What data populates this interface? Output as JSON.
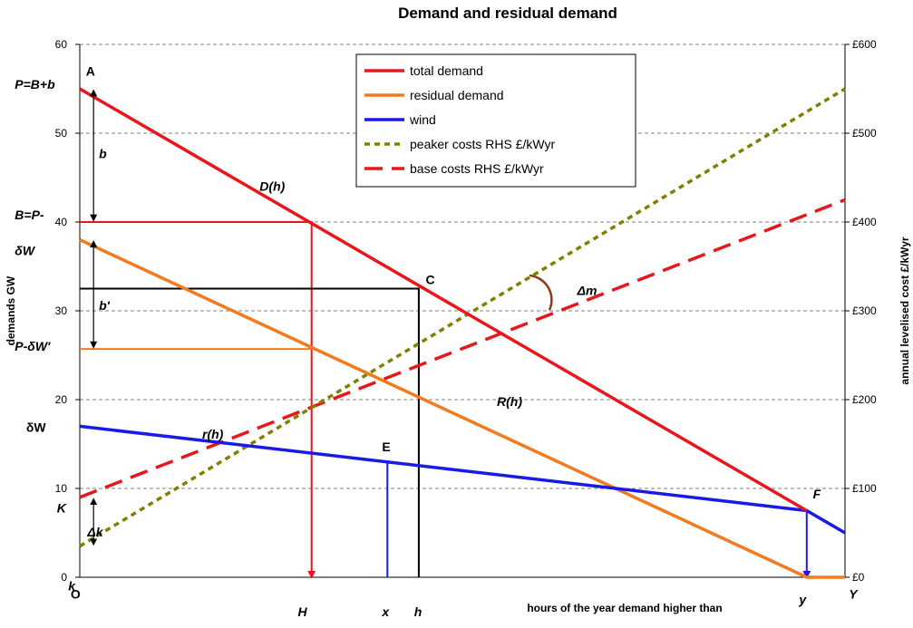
{
  "chart_data": {
    "type": "line",
    "title": "Demand and residual demand",
    "ylabel_left": "demands GW",
    "ylabel_right": "annual levelised cost £/kWyr",
    "xlabel": "hours of the year demand higher than",
    "ylim_left": [
      0,
      60
    ],
    "ylim_right": [
      0,
      600
    ],
    "xlim": [
      0,
      1
    ],
    "left_ticks": [
      "0",
      "10",
      "20",
      "30",
      "40",
      "50",
      "60"
    ],
    "right_ticks": [
      "£0",
      "£100",
      "£200",
      "£300",
      "£400",
      "£500",
      "£600"
    ],
    "grid": true,
    "legend_position": "top-center",
    "legend": [
      {
        "label": "total demand",
        "color": "#e8171c",
        "style": "solid"
      },
      {
        "label": "residual demand",
        "color": "#f47a1f",
        "style": "solid"
      },
      {
        "label": "wind",
        "color": "#1a1ae6",
        "style": "solid"
      },
      {
        "label": "peaker costs RHS £/kWyr",
        "color": "#808000",
        "style": "dotted"
      },
      {
        "label": "base costs RHS £/kWyr",
        "color": "#e8171c",
        "style": "dashed"
      }
    ],
    "series": [
      {
        "name": "total demand",
        "axis": "left",
        "x": [
          0,
          0.95
        ],
        "y": [
          55,
          7.5
        ]
      },
      {
        "name": "residual demand",
        "axis": "left",
        "x": [
          0,
          0.95,
          1.0
        ],
        "y": [
          38,
          0,
          0
        ]
      },
      {
        "name": "wind",
        "axis": "left",
        "x": [
          0,
          0.95,
          1.0
        ],
        "y": [
          17,
          7.5,
          5
        ]
      },
      {
        "name": "peaker costs RHS £/kWyr",
        "axis": "right",
        "x": [
          0,
          1.0
        ],
        "y": [
          35,
          550
        ]
      },
      {
        "name": "base costs RHS £/kWyr",
        "axis": "right",
        "x": [
          0,
          1.0
        ],
        "y": [
          90,
          425
        ]
      }
    ],
    "helper_lines": [
      {
        "color": "#e8171c",
        "points": [
          [
            0,
            40
          ],
          [
            0.303,
            40
          ],
          [
            0.303,
            0
          ]
        ],
        "arrow": true
      },
      {
        "color": "#f47a1f",
        "points": [
          [
            0,
            25.7
          ],
          [
            0.303,
            25.7
          ]
        ],
        "arrow": false
      },
      {
        "color": "#000000",
        "points": [
          [
            0,
            32.5
          ],
          [
            0.443,
            32.5
          ],
          [
            0.443,
            0
          ]
        ],
        "arrow": false
      },
      {
        "color": "#1a1ae6",
        "points": [
          [
            0.402,
            13
          ],
          [
            0.402,
            0
          ]
        ],
        "arrow": false
      },
      {
        "color": "#1a1ae6",
        "points": [
          [
            0.95,
            7.5
          ],
          [
            0.95,
            0
          ]
        ],
        "arrow": true
      }
    ],
    "double_arrows": [
      {
        "x": 0.018,
        "y1": 55,
        "y2": 40
      },
      {
        "x": 0.018,
        "y1": 38,
        "y2": 25.7
      },
      {
        "x": 0.018,
        "y1": 9,
        "y2": 3.5
      }
    ],
    "annotations": [
      {
        "text": "P=B+b",
        "x": -0.085,
        "y": 55,
        "style": "italic"
      },
      {
        "text": "A",
        "x": 0.008,
        "y": 56.5,
        "style": "upright"
      },
      {
        "text": "b",
        "x": 0.025,
        "y": 47.2,
        "style": "italic"
      },
      {
        "text": "D(h)",
        "x": 0.235,
        "y": 43.5,
        "style": "italic",
        "color": "#e8171c"
      },
      {
        "text": "B=P-",
        "x": -0.085,
        "y": 40.3,
        "style": "italic"
      },
      {
        "text": "δW",
        "x": -0.085,
        "y": 36.3,
        "style": "italic"
      },
      {
        "text": "C",
        "x": 0.452,
        "y": 33,
        "style": "upright"
      },
      {
        "text": "Δm",
        "x": 0.65,
        "y": 31.8,
        "style": "italic"
      },
      {
        "text": "b'",
        "x": 0.025,
        "y": 30.1,
        "style": "italic"
      },
      {
        "text": "P-δW'",
        "x": -0.085,
        "y": 25.5,
        "style": "italic"
      },
      {
        "text": "R(h)",
        "x": 0.545,
        "y": 19.3,
        "style": "italic",
        "color": "#808000"
      },
      {
        "text": "δW",
        "x": -0.07,
        "y": 16.4,
        "style": "upright"
      },
      {
        "text": "r(h)",
        "x": 0.16,
        "y": 15.6,
        "style": "italic",
        "color": "#1a1ae6"
      },
      {
        "text": "E",
        "x": 0.395,
        "y": 14.2,
        "style": "upright"
      },
      {
        "text": "K",
        "x": -0.03,
        "y": 7.3,
        "style": "italic"
      },
      {
        "text": "Δk",
        "x": 0.01,
        "y": 4.6,
        "style": "italic"
      },
      {
        "text": "F",
        "x": 0.958,
        "y": 8.9,
        "style": "italic"
      },
      {
        "text": "k",
        "x": -0.015,
        "y": -1.5,
        "style": "italic"
      },
      {
        "text": "O",
        "x": -0.012,
        "y": -2.4,
        "style": "upright"
      },
      {
        "text": "H",
        "x": 0.285,
        "y": -4.4,
        "style": "italic"
      },
      {
        "text": "x",
        "x": 0.395,
        "y": -4.4,
        "style": "italic"
      },
      {
        "text": "h",
        "x": 0.437,
        "y": -4.4,
        "style": "italic"
      },
      {
        "text": "y",
        "x": 0.94,
        "y": -3.0,
        "style": "italic"
      },
      {
        "text": "Y",
        "x": 1.005,
        "y": -2.4,
        "style": "italic"
      }
    ]
  }
}
